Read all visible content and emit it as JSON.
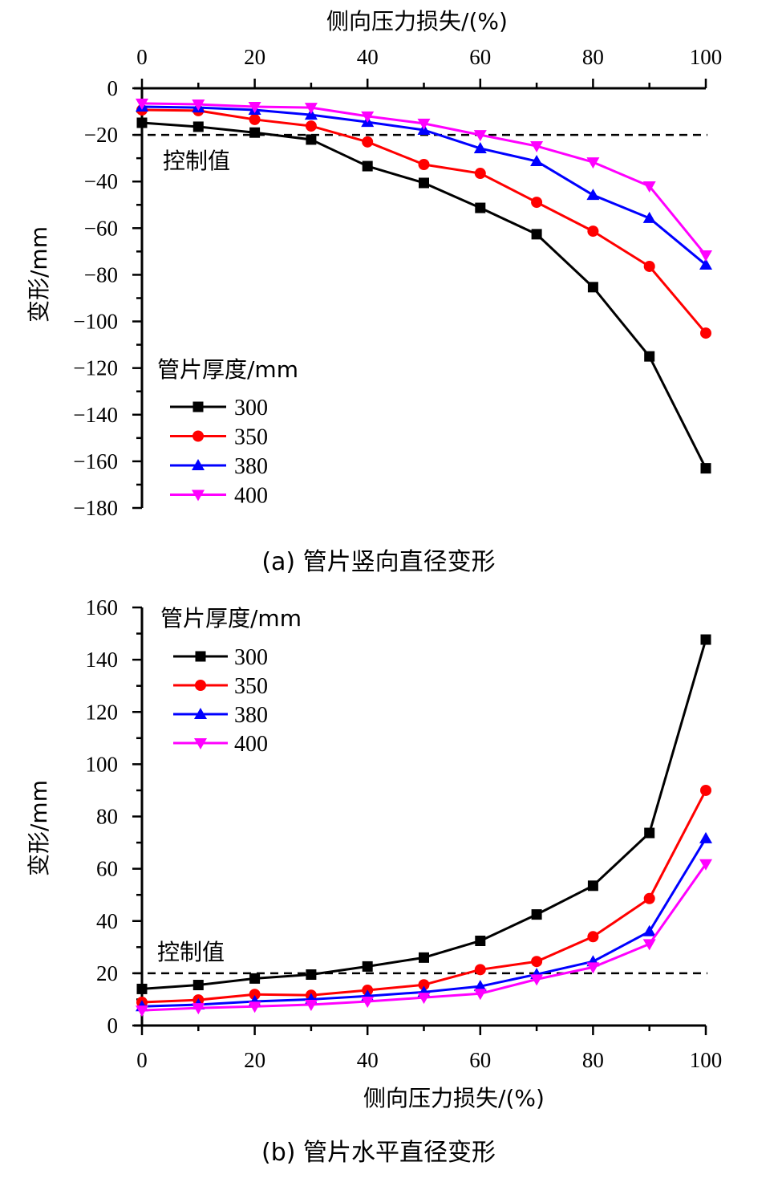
{
  "chart_data": [
    {
      "type": "line",
      "panel": "a",
      "caption": "(a)  管片竖向直径变形",
      "xlabel": "侧向压力损失/(%)",
      "ylabel": "变形/mm",
      "x_axis_position": "top",
      "xlim": [
        0,
        100
      ],
      "ylim": [
        -180,
        0
      ],
      "xticks": [
        0,
        20,
        40,
        60,
        80,
        100
      ],
      "xtick_labels": [
        "0",
        "20",
        "40",
        "60",
        "80",
        "100"
      ],
      "yticks": [
        0,
        -20,
        -40,
        -60,
        -80,
        -100,
        -120,
        -140,
        -160,
        -180
      ],
      "ytick_labels": [
        "0",
        "−20",
        "−40",
        "−60",
        "−80",
        "−100",
        "−120",
        "−140",
        "−160",
        "−180"
      ],
      "grid": false,
      "control_line": {
        "value": -20,
        "label": "控制值"
      },
      "legend": {
        "title": "管片厚度/mm",
        "placement": "bottom-left"
      },
      "x": [
        0,
        10,
        20,
        30,
        40,
        50,
        60,
        70,
        80,
        90,
        100
      ],
      "series": [
        {
          "name": "300",
          "color": "#000000",
          "marker": "square",
          "values": [
            -14.8,
            -16.5,
            -19.0,
            -22.0,
            -33.4,
            -40.6,
            -51.3,
            -62.6,
            -85.3,
            -115.0,
            -163.0
          ]
        },
        {
          "name": "350",
          "color": "#ff0000",
          "marker": "circle",
          "values": [
            -9.3,
            -9.6,
            -13.4,
            -16.2,
            -23.0,
            -32.7,
            -36.5,
            -48.9,
            -61.3,
            -76.4,
            -105.0
          ]
        },
        {
          "name": "380",
          "color": "#0000ff",
          "marker": "triangle-up",
          "values": [
            -7.9,
            -8.3,
            -9.3,
            -11.4,
            -14.5,
            -17.9,
            -25.8,
            -31.3,
            -45.8,
            -55.7,
            -75.7
          ]
        },
        {
          "name": "400",
          "color": "#ff00ff",
          "marker": "triangle-down",
          "values": [
            -6.5,
            -6.9,
            -7.9,
            -8.3,
            -12.0,
            -15.1,
            -20.0,
            -24.8,
            -31.7,
            -42.0,
            -71.6
          ]
        }
      ]
    },
    {
      "type": "line",
      "panel": "b",
      "caption": "(b)  管片水平直径变形",
      "xlabel": "侧向压力损失/(%)",
      "ylabel": "变形/mm",
      "x_axis_position": "bottom",
      "xlim": [
        0,
        100
      ],
      "ylim": [
        0,
        160
      ],
      "xticks": [
        0,
        20,
        40,
        60,
        80,
        100
      ],
      "xtick_labels": [
        "0",
        "20",
        "40",
        "60",
        "80",
        "100"
      ],
      "yticks": [
        0,
        20,
        40,
        60,
        80,
        100,
        120,
        140,
        160
      ],
      "ytick_labels": [
        "0",
        "20",
        "40",
        "60",
        "80",
        "100",
        "120",
        "140",
        "160"
      ],
      "grid": false,
      "control_line": {
        "value": 20,
        "label": "控制值"
      },
      "legend": {
        "title": "管片厚度/mm",
        "placement": "top-left"
      },
      "x": [
        0,
        10,
        20,
        30,
        40,
        50,
        60,
        70,
        80,
        90,
        100
      ],
      "series": [
        {
          "name": "300",
          "color": "#000000",
          "marker": "square",
          "values": [
            14.0,
            15.5,
            18.0,
            19.5,
            22.6,
            26.0,
            32.4,
            42.5,
            53.5,
            73.7,
            147.7
          ]
        },
        {
          "name": "350",
          "color": "#ff0000",
          "marker": "circle",
          "values": [
            8.9,
            9.8,
            11.9,
            11.6,
            13.5,
            15.6,
            21.4,
            24.5,
            34.0,
            48.6,
            90.0
          ]
        },
        {
          "name": "380",
          "color": "#0000ff",
          "marker": "triangle-up",
          "values": [
            7.3,
            8.0,
            9.2,
            10.0,
            11.3,
            12.8,
            15.0,
            19.6,
            24.5,
            36.0,
            71.6
          ]
        },
        {
          "name": "400",
          "color": "#ff00ff",
          "marker": "triangle-down",
          "values": [
            5.8,
            6.7,
            7.3,
            8.0,
            9.2,
            10.7,
            12.2,
            17.7,
            22.3,
            31.2,
            61.8
          ]
        }
      ]
    }
  ]
}
